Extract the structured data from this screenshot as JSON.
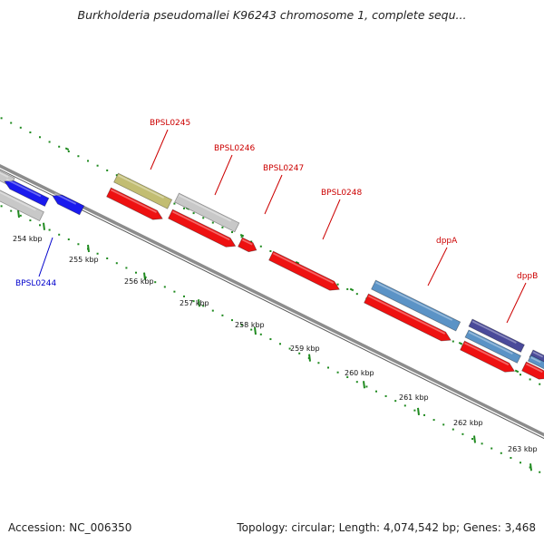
{
  "title": "Burkholderia pseudomallei K96243 chromosome 1, complete sequ...",
  "footer": {
    "accession": "Accession: NC_006350",
    "stats": "Topology: circular; Length: 4,074,542 bp; Genes: 3,468"
  },
  "colors": {
    "backbone": "#8c8c8c",
    "ticks": "#1f8a1f",
    "cds": "#ee1111",
    "forward_blue": "#1a1aee",
    "gray_gene": "#c8c8c8",
    "olive_gene": "#c2bd72",
    "steel_blue_gene": "#5b93c6",
    "slate_blue_gene": "#4a4a9a",
    "label_red": "#cc0000",
    "label_blue": "#0000cc"
  },
  "ticks": [
    {
      "label": "254 kbp"
    },
    {
      "label": "255 kbp"
    },
    {
      "label": "256 kbp"
    },
    {
      "label": "257 kbp"
    },
    {
      "label": "258 kbp"
    },
    {
      "label": "259 kbp"
    },
    {
      "label": "260 kbp"
    },
    {
      "label": "261 kbp"
    },
    {
      "label": "262 kbp"
    },
    {
      "label": "263 kbp"
    }
  ],
  "gene_labels": [
    {
      "text": "BPSL0244",
      "color": "#0000cc"
    },
    {
      "text": "BPSL0245",
      "color": "#cc0000"
    },
    {
      "text": "BPSL0246",
      "color": "#cc0000"
    },
    {
      "text": "BPSL0247",
      "color": "#cc0000"
    },
    {
      "text": "BPSL0248",
      "color": "#cc0000"
    },
    {
      "text": "dppA",
      "color": "#cc0000"
    },
    {
      "text": "dppB",
      "color": "#cc0000"
    }
  ]
}
